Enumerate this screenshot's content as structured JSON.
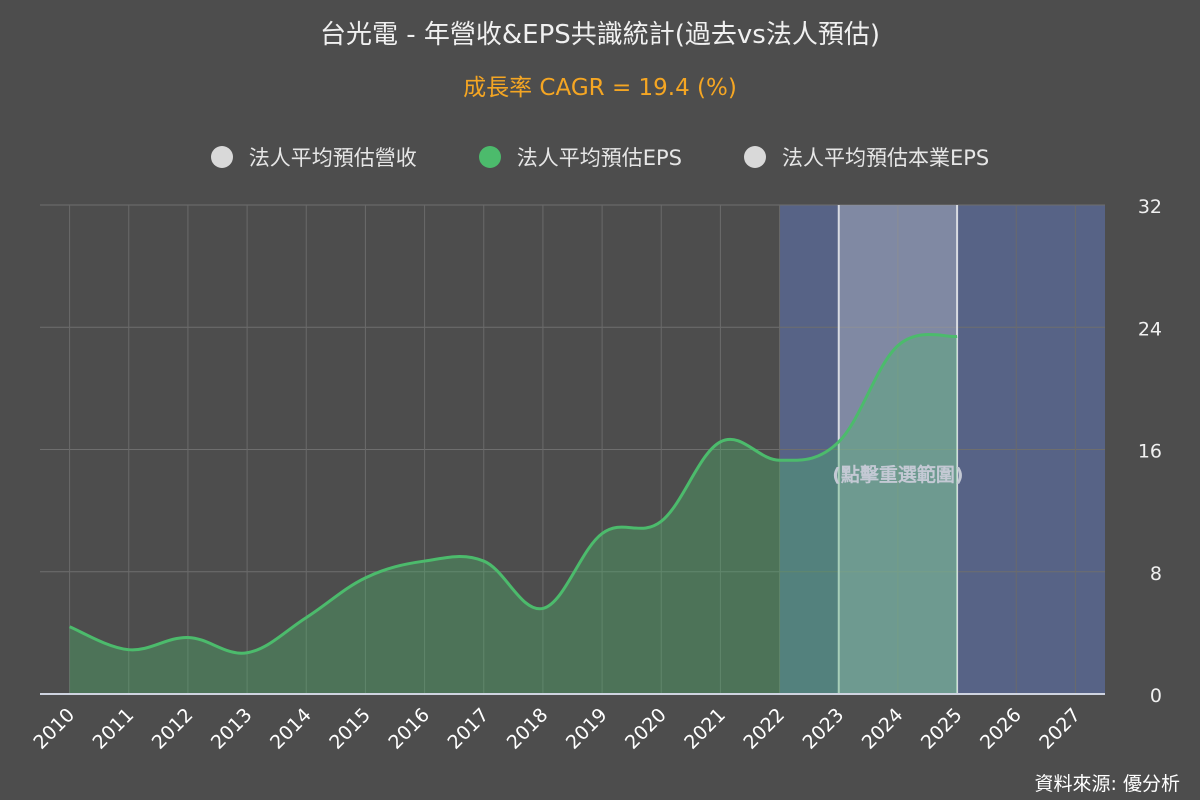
{
  "title": "台光電 - 年營收&EPS共識統計(過去vs法人預估)",
  "subtitle": "成長率 CAGR = 19.4 (%)",
  "source": "資料來源: 優分析",
  "legend": [
    {
      "label": "法人平均預估營收",
      "color": "#d9d9d9"
    },
    {
      "label": "法人平均預估EPS",
      "color": "#4cbb6c"
    },
    {
      "label": "法人平均預估本業EPS",
      "color": "#d9d9d9"
    }
  ],
  "chart_data": {
    "type": "area",
    "x": [
      "2010",
      "2011",
      "2012",
      "2013",
      "2014",
      "2015",
      "2016",
      "2017",
      "2018",
      "2019",
      "2020",
      "2021",
      "2022",
      "2023",
      "2024",
      "2025",
      "2026",
      "2027"
    ],
    "series": [
      {
        "name": "法人平均預估EPS",
        "color": "#4cbb6c",
        "values": [
          4.4,
          2.9,
          3.7,
          2.7,
          5.0,
          7.6,
          8.7,
          8.7,
          5.6,
          10.5,
          11.3,
          16.5,
          15.3,
          16.5,
          22.8,
          23.4,
          null,
          null
        ]
      }
    ],
    "y_axis": {
      "position": "right",
      "min": 0,
      "max": 32,
      "ticks": [
        0,
        8,
        16,
        24,
        32
      ]
    },
    "forecast_band": {
      "from": "2022",
      "to": "2027",
      "color": "#5b6b9a"
    },
    "selected_range": {
      "from": "2023",
      "to": "2025",
      "label": "(點擊重選範圍)"
    },
    "grid": true
  }
}
